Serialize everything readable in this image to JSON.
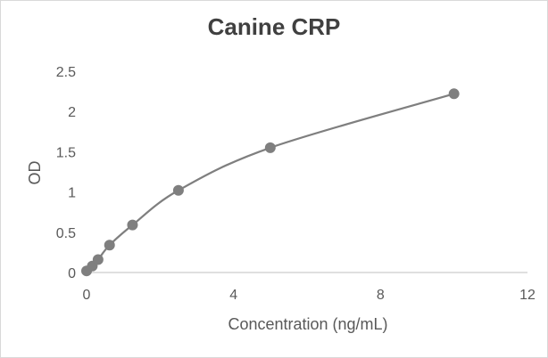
{
  "chart_data": {
    "type": "scatter",
    "title": "Canine CRP",
    "xlabel": "Concentration (ng/mL)",
    "ylabel": "OD",
    "xlim": [
      0,
      12
    ],
    "ylim": [
      0,
      2.5
    ],
    "xticks": [
      0,
      4,
      8,
      12
    ],
    "yticks": [
      0,
      0.5,
      1,
      1.5,
      2,
      2.5
    ],
    "xtick_labels": [
      "0",
      "4",
      "8",
      "12"
    ],
    "ytick_labels": [
      "0",
      "0.5",
      "1",
      "1.5",
      "2",
      "2.5"
    ],
    "grid": false,
    "legend": "none",
    "smooth_line": true,
    "series": [
      {
        "x": [
          0,
          0.156,
          0.3125,
          0.625,
          1.25,
          2.5,
          5,
          10
        ],
        "y": [
          0.02,
          0.08,
          0.16,
          0.34,
          0.59,
          1.02,
          1.55,
          2.22
        ]
      }
    ],
    "colors": {
      "series": "#7f7f7f",
      "axis": "#bfbfbf"
    }
  }
}
